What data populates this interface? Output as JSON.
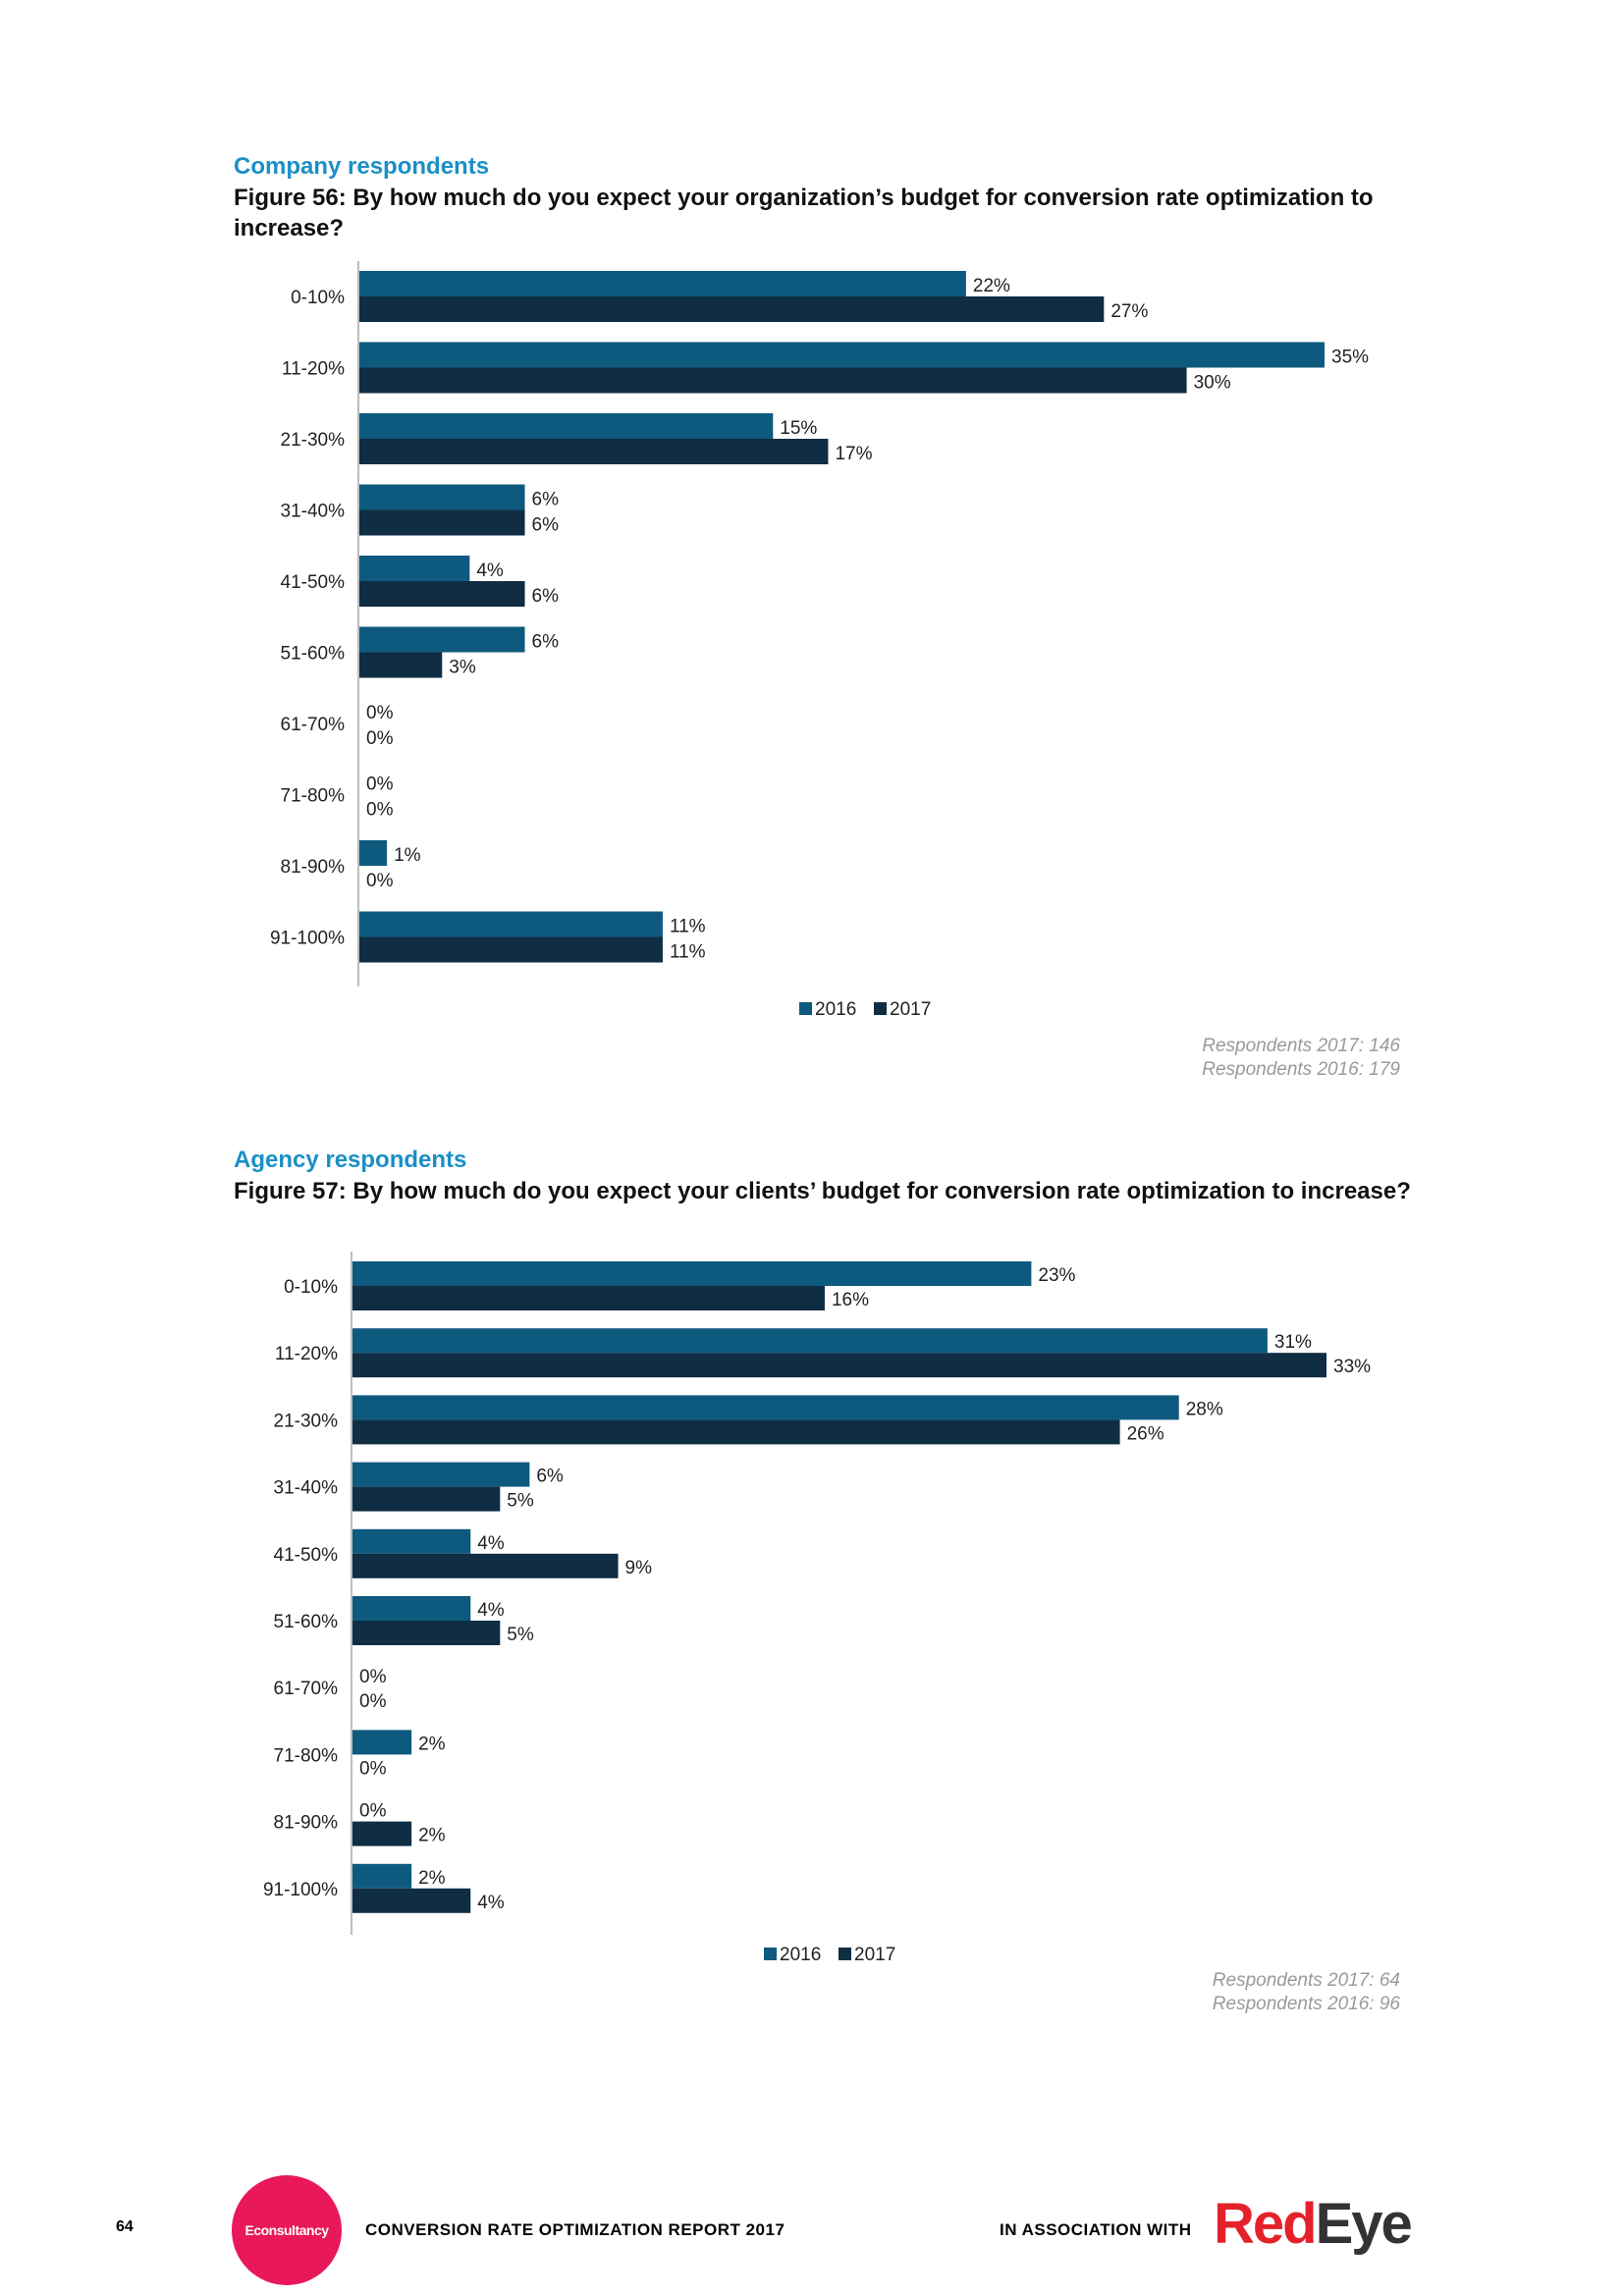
{
  "colors": {
    "series_2016": "#0e5a7e",
    "series_2017": "#0f2d43",
    "section": "#1b8fc6",
    "brand_pink": "#e8185a",
    "brand_red": "#e5222b"
  },
  "figure56": {
    "section_label": "Company respondents",
    "title": "Figure 56: By how much do you expect your organization’s budget for conversion rate optimization to increase?",
    "respondents_2017": "Respondents 2017: 146",
    "respondents_2016": "Respondents 2016: 179"
  },
  "figure57": {
    "section_label": "Agency respondents",
    "title": "Figure 57: By how much do you expect your clients’ budget for conversion rate optimization to increase?",
    "respondents_2017": "Respondents 2017: 64",
    "respondents_2016": "Respondents 2016: 96"
  },
  "chart_data": [
    {
      "type": "bar",
      "orientation": "horizontal",
      "title": "Figure 56: By how much do you expect your organization’s budget for conversion rate optimization to increase?",
      "categories": [
        "0-10%",
        "11-20%",
        "21-30%",
        "31-40%",
        "41-50%",
        "51-60%",
        "61-70%",
        "71-80%",
        "81-90%",
        "91-100%"
      ],
      "series": [
        {
          "name": "2016",
          "values": [
            22,
            35,
            15,
            6,
            4,
            6,
            0,
            0,
            1,
            11
          ]
        },
        {
          "name": "2017",
          "values": [
            27,
            30,
            17,
            6,
            6,
            3,
            0,
            0,
            0,
            11
          ]
        }
      ],
      "value_suffix": "%",
      "xlim": [
        0,
        35
      ],
      "legend": "bottom"
    },
    {
      "type": "bar",
      "orientation": "horizontal",
      "title": "Figure 57: By how much do you expect your clients’ budget for conversion rate optimization to increase?",
      "categories": [
        "0-10%",
        "11-20%",
        "21-30%",
        "31-40%",
        "41-50%",
        "51-60%",
        "61-70%",
        "71-80%",
        "81-90%",
        "91-100%"
      ],
      "series": [
        {
          "name": "2016",
          "values": [
            23,
            31,
            28,
            6,
            4,
            4,
            0,
            2,
            0,
            2
          ]
        },
        {
          "name": "2017",
          "values": [
            16,
            33,
            26,
            5,
            9,
            5,
            0,
            0,
            2,
            4
          ]
        }
      ],
      "value_suffix": "%",
      "xlim": [
        0,
        33
      ],
      "legend": "bottom"
    }
  ],
  "footer": {
    "page_number": "64",
    "logo_text": "Econsultancy",
    "report_title": "CONVERSION RATE OPTIMIZATION REPORT 2017",
    "association": "IN ASSOCIATION WITH",
    "partner_red": "Red",
    "partner_dark": "Eye"
  }
}
